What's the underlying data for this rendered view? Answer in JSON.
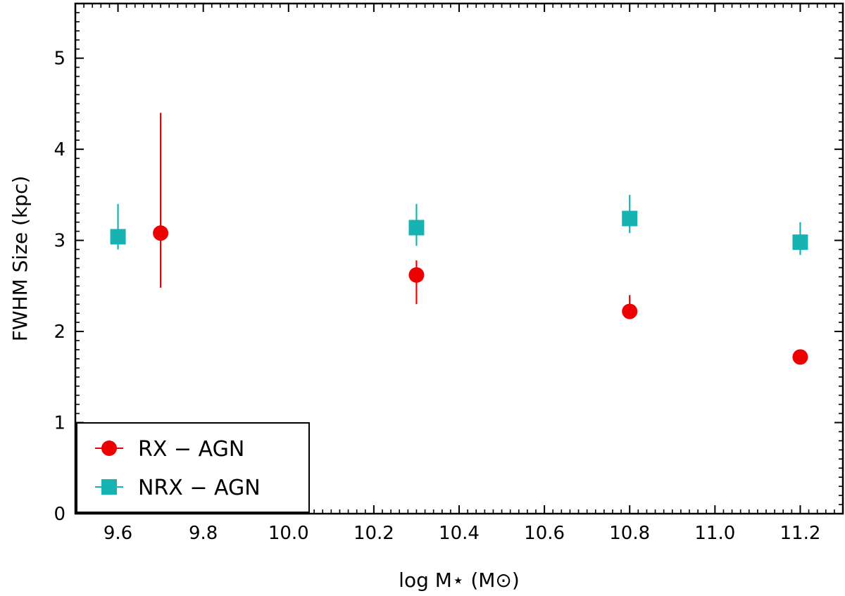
{
  "chart_data": {
    "type": "scatter",
    "title": "",
    "xlabel": "log M⋆ (M⊙)",
    "ylabel": "FWHM Size (kpc)",
    "xlim": [
      9.5,
      11.3
    ],
    "ylim": [
      0,
      5.6
    ],
    "xticks": [
      9.6,
      9.8,
      10.0,
      10.2,
      10.4,
      10.6,
      10.8,
      11.0,
      11.2
    ],
    "xtick_labels": [
      "9.6",
      "9.8",
      "10.0",
      "10.2",
      "10.4",
      "10.6",
      "10.8",
      "11.0",
      "11.2"
    ],
    "yticks": [
      0,
      1,
      2,
      3,
      4,
      5
    ],
    "ytick_labels": [
      "0",
      "1",
      "2",
      "3",
      "4",
      "5"
    ],
    "grid": false,
    "legend_position": "bottom-left",
    "series": [
      {
        "name": "RX − AGN",
        "marker": "circle",
        "color": "#ee0000",
        "points": [
          {
            "x": 9.7,
            "y": 3.08,
            "ylo": 2.48,
            "yhi": 4.4
          },
          {
            "x": 10.3,
            "y": 2.62,
            "ylo": 2.3,
            "yhi": 2.78
          },
          {
            "x": 10.8,
            "y": 2.22,
            "ylo": 2.16,
            "yhi": 2.4
          },
          {
            "x": 11.2,
            "y": 1.72,
            "ylo": 1.68,
            "yhi": 1.76
          }
        ]
      },
      {
        "name": "NRX − AGN",
        "marker": "square",
        "color": "#17b3b3",
        "points": [
          {
            "x": 9.6,
            "y": 3.04,
            "ylo": 2.9,
            "yhi": 3.4
          },
          {
            "x": 10.3,
            "y": 3.14,
            "ylo": 2.94,
            "yhi": 3.4
          },
          {
            "x": 10.8,
            "y": 3.24,
            "ylo": 3.08,
            "yhi": 3.5
          },
          {
            "x": 11.2,
            "y": 2.98,
            "ylo": 2.84,
            "yhi": 3.2
          }
        ]
      }
    ]
  }
}
